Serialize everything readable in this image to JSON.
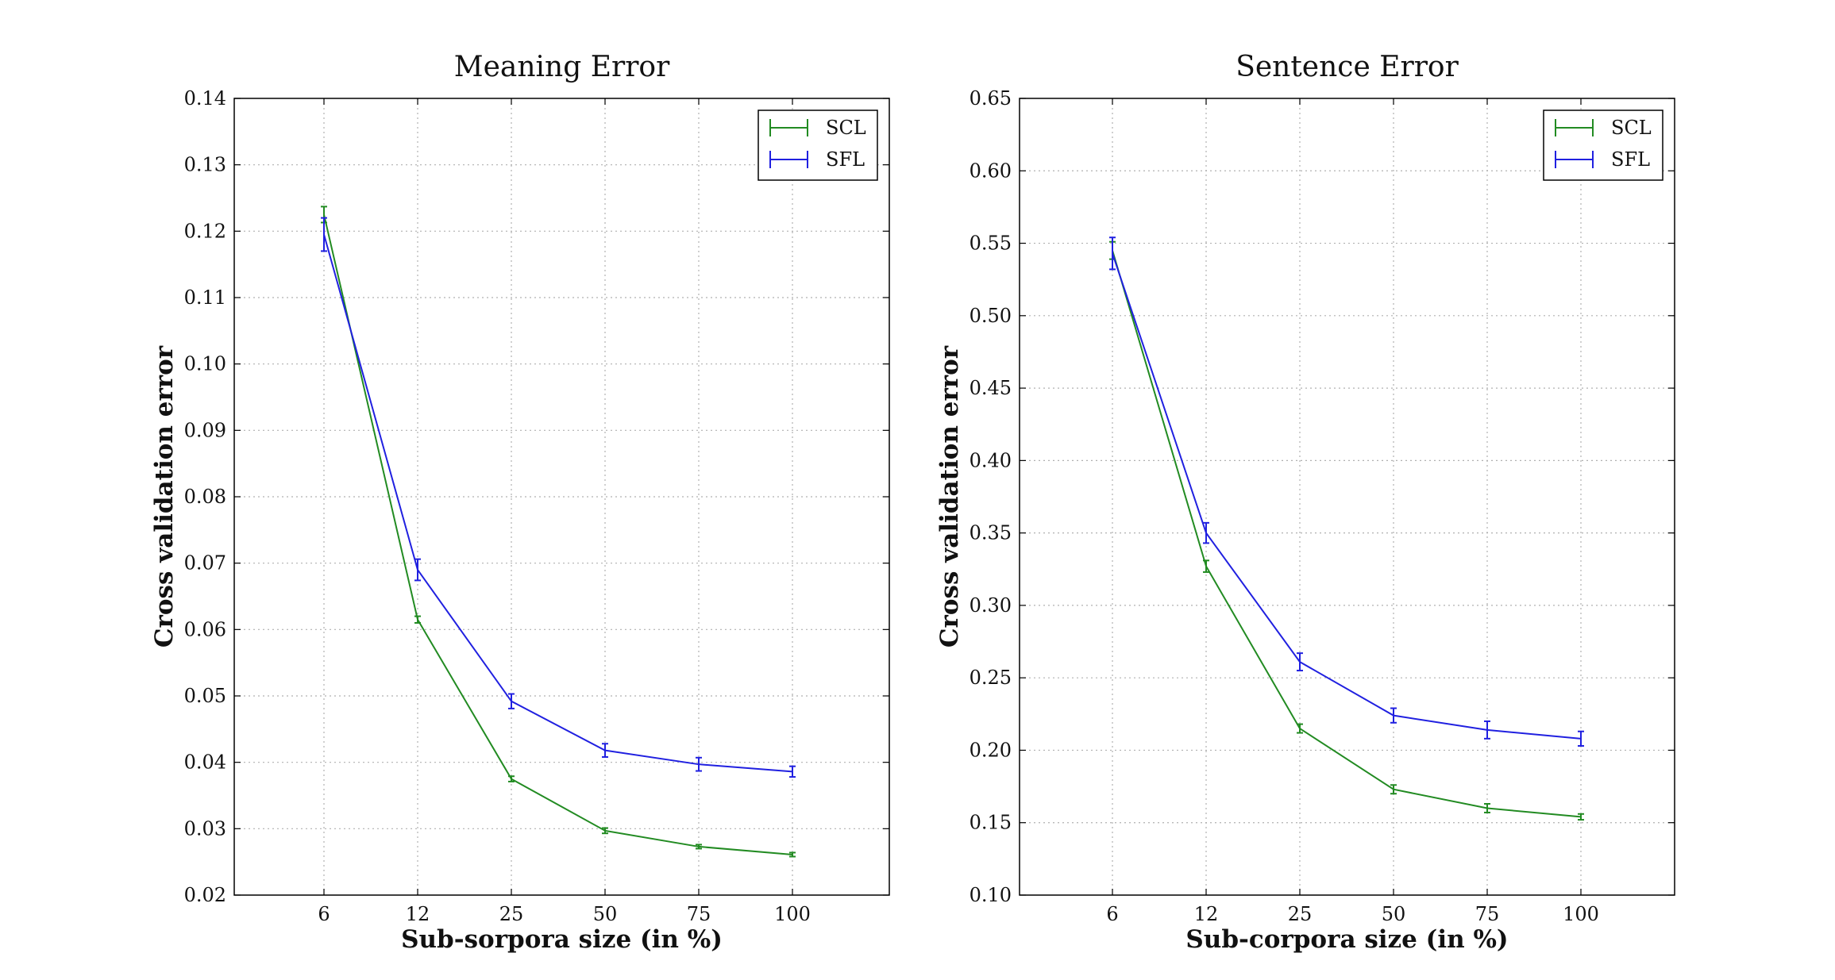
{
  "chart_data": [
    {
      "type": "line",
      "title": "Meaning Error",
      "xlabel": "Sub-sorpora size (in %)",
      "ylabel": "Cross validation error",
      "categories": [
        "6",
        "12",
        "25",
        "50",
        "75",
        "100"
      ],
      "ylim": [
        0.02,
        0.14
      ],
      "yticks": [
        "0.02",
        "0.03",
        "0.04",
        "0.05",
        "0.06",
        "0.07",
        "0.08",
        "0.09",
        "0.10",
        "0.11",
        "0.12",
        "0.13",
        "0.14"
      ],
      "grid": true,
      "legend_position": "top-right",
      "series": [
        {
          "name": "SCL",
          "color": "#228b22",
          "values": [
            0.1225,
            0.0615,
            0.0375,
            0.0297,
            0.0273,
            0.0261
          ],
          "errors": [
            0.0012,
            0.0005,
            0.0004,
            0.0004,
            0.0003,
            0.0003
          ]
        },
        {
          "name": "SFL",
          "color": "#2020e0",
          "values": [
            0.1195,
            0.069,
            0.0492,
            0.0418,
            0.0397,
            0.0386
          ],
          "errors": [
            0.0025,
            0.0016,
            0.0011,
            0.001,
            0.001,
            0.0008
          ]
        }
      ]
    },
    {
      "type": "line",
      "title": "Sentence Error",
      "xlabel": "Sub-corpora size (in %)",
      "ylabel": "Cross validation error",
      "categories": [
        "6",
        "12",
        "25",
        "50",
        "75",
        "100"
      ],
      "ylim": [
        0.1,
        0.65
      ],
      "yticks": [
        "0.10",
        "0.15",
        "0.20",
        "0.25",
        "0.30",
        "0.35",
        "0.40",
        "0.45",
        "0.50",
        "0.55",
        "0.60",
        "0.65"
      ],
      "grid": true,
      "legend_position": "top-right",
      "series": [
        {
          "name": "SCL",
          "color": "#228b22",
          "values": [
            0.545,
            0.327,
            0.215,
            0.173,
            0.16,
            0.154
          ],
          "errors": [
            0.006,
            0.004,
            0.003,
            0.003,
            0.003,
            0.002
          ]
        },
        {
          "name": "SFL",
          "color": "#2020e0",
          "values": [
            0.543,
            0.35,
            0.261,
            0.224,
            0.214,
            0.208
          ],
          "errors": [
            0.011,
            0.007,
            0.006,
            0.005,
            0.006,
            0.005
          ]
        }
      ]
    }
  ]
}
